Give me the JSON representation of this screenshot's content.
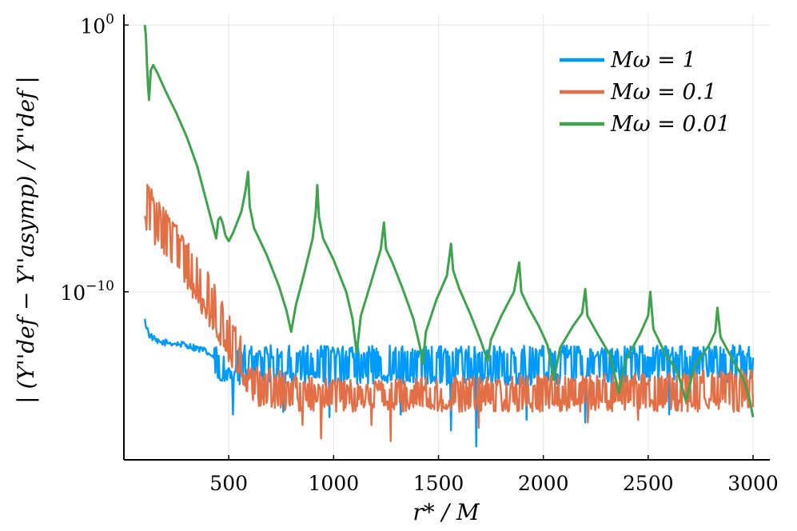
{
  "chart_data": {
    "type": "line",
    "title": "",
    "xlabel": "r* / M",
    "ylabel": "| (Y''def − Y''asymp) / Y''def |",
    "yscale": "log",
    "xlim": [
      0,
      3080
    ],
    "ylim_log10": [
      -16.3,
      0.4
    ],
    "xticks": [
      500,
      1000,
      1500,
      2000,
      2500,
      3000
    ],
    "xtick_labels": [
      "500",
      "1000",
      "1500",
      "2000",
      "2500",
      "3000"
    ],
    "yticks_log10": [
      0,
      -10
    ],
    "ytick_labels": [
      "10",
      "10"
    ],
    "ytick_exponents": [
      "0",
      "−10"
    ],
    "grid": true,
    "legend_position": "top-right",
    "series": [
      {
        "name": "Mω = 1",
        "legend_prefix": "Mω = ",
        "legend_value": "1",
        "color": "#009AFA",
        "points": [
          [
            100,
            -11.1
          ],
          [
            120,
            -11.6
          ],
          [
            160,
            -11.9
          ],
          [
            200,
            -11.9
          ],
          [
            300,
            -12.0
          ],
          [
            380,
            -12.2
          ],
          [
            420,
            -12.4
          ],
          [
            450,
            -12.7
          ],
          [
            480,
            -13.2
          ],
          [
            500,
            -13.6
          ],
          [
            520,
            -13.8
          ],
          [
            560,
            -12.3
          ],
          [
            600,
            -12.4
          ],
          [
            800,
            -12.6
          ],
          [
            1000,
            -12.7
          ],
          [
            1200,
            -12.6
          ],
          [
            1500,
            -12.6
          ],
          [
            2000,
            -12.5
          ],
          [
            2500,
            -12.4
          ],
          [
            3000,
            -12.4
          ]
        ],
        "band_min": -13.5,
        "band_max": -12.0,
        "dips": [
          [
            520,
            -14.6
          ],
          [
            760,
            -14.5
          ],
          [
            980,
            -14.7
          ],
          [
            1320,
            -14.6
          ],
          [
            1560,
            -15.2
          ],
          [
            1680,
            -15.8
          ],
          [
            1920,
            -14.8
          ],
          [
            2200,
            -14.9
          ],
          [
            2600,
            -14.6
          ]
        ]
      },
      {
        "name": "Mω = 0.1",
        "legend_prefix": "Mω = ",
        "legend_value": "0.1",
        "color": "#E26F46",
        "points": [
          [
            100,
            -6.5
          ],
          [
            150,
            -7.2
          ],
          [
            200,
            -7.8
          ],
          [
            250,
            -8.3
          ],
          [
            300,
            -8.8
          ],
          [
            350,
            -9.4
          ],
          [
            400,
            -10.1
          ],
          [
            450,
            -10.8
          ],
          [
            500,
            -11.6
          ],
          [
            550,
            -12.4
          ],
          [
            600,
            -13.0
          ],
          [
            700,
            -13.7
          ],
          [
            800,
            -14.0
          ],
          [
            1000,
            -14.1
          ],
          [
            1500,
            -14.1
          ],
          [
            2000,
            -14.0
          ],
          [
            2500,
            -13.9
          ],
          [
            3000,
            -13.8
          ]
        ],
        "band_min": -14.5,
        "band_max": -12.8,
        "dips": [
          [
            850,
            -15.0
          ],
          [
            940,
            -15.5
          ],
          [
            1180,
            -15.0
          ],
          [
            1270,
            -15.6
          ],
          [
            1690,
            -15.1
          ],
          [
            2210,
            -14.9
          ],
          [
            2450,
            -14.8
          ]
        ]
      },
      {
        "name": "Mω = 0.01",
        "legend_prefix": "Mω = ",
        "legend_value": "0.01",
        "color": "#3FA34D",
        "points": [
          [
            100,
            0.0
          ],
          [
            105,
            -0.4
          ],
          [
            110,
            -1.5
          ],
          [
            115,
            -2.3
          ],
          [
            120,
            -2.8
          ],
          [
            128,
            -1.7
          ],
          [
            140,
            -1.5
          ],
          [
            160,
            -1.8
          ],
          [
            200,
            -2.5
          ],
          [
            250,
            -3.3
          ],
          [
            300,
            -4.2
          ],
          [
            350,
            -5.3
          ],
          [
            400,
            -6.8
          ],
          [
            440,
            -8.0
          ],
          [
            450,
            -7.3
          ],
          [
            460,
            -7.2
          ],
          [
            470,
            -7.4
          ],
          [
            485,
            -7.9
          ],
          [
            500,
            -8.1
          ],
          [
            520,
            -7.8
          ],
          [
            560,
            -7.0
          ],
          [
            580,
            -6.2
          ],
          [
            592,
            -5.5
          ],
          [
            600,
            -6.8
          ],
          [
            620,
            -7.6
          ],
          [
            680,
            -8.6
          ],
          [
            740,
            -9.8
          ],
          [
            775,
            -10.7
          ],
          [
            798,
            -11.5
          ],
          [
            820,
            -10.5
          ],
          [
            860,
            -9.3
          ],
          [
            900,
            -8.0
          ],
          [
            915,
            -7.0
          ],
          [
            922,
            -6.0
          ],
          [
            930,
            -7.2
          ],
          [
            950,
            -8.0
          ],
          [
            1000,
            -8.8
          ],
          [
            1060,
            -10.0
          ],
          [
            1090,
            -11.0
          ],
          [
            1110,
            -12.3
          ],
          [
            1130,
            -10.9
          ],
          [
            1180,
            -9.6
          ],
          [
            1225,
            -8.4
          ],
          [
            1240,
            -7.4
          ],
          [
            1250,
            -8.4
          ],
          [
            1280,
            -8.9
          ],
          [
            1330,
            -9.9
          ],
          [
            1380,
            -11.0
          ],
          [
            1410,
            -12.0
          ],
          [
            1425,
            -12.7
          ],
          [
            1440,
            -11.5
          ],
          [
            1490,
            -10.3
          ],
          [
            1540,
            -9.4
          ],
          [
            1560,
            -8.2
          ],
          [
            1570,
            -9.2
          ],
          [
            1600,
            -9.9
          ],
          [
            1650,
            -10.8
          ],
          [
            1700,
            -11.8
          ],
          [
            1735,
            -12.6
          ],
          [
            1750,
            -11.8
          ],
          [
            1800,
            -10.9
          ],
          [
            1860,
            -10.0
          ],
          [
            1885,
            -8.9
          ],
          [
            1895,
            -10.0
          ],
          [
            1930,
            -10.6
          ],
          [
            1980,
            -11.3
          ],
          [
            2020,
            -12.0
          ],
          [
            2050,
            -13.3
          ],
          [
            2080,
            -12.1
          ],
          [
            2140,
            -11.3
          ],
          [
            2185,
            -10.8
          ],
          [
            2200,
            -9.9
          ],
          [
            2210,
            -10.9
          ],
          [
            2260,
            -11.6
          ],
          [
            2320,
            -12.4
          ],
          [
            2360,
            -13.8
          ],
          [
            2390,
            -12.6
          ],
          [
            2460,
            -11.6
          ],
          [
            2500,
            -10.9
          ],
          [
            2510,
            -10.0
          ],
          [
            2525,
            -11.4
          ],
          [
            2580,
            -12.3
          ],
          [
            2640,
            -13.0
          ],
          [
            2680,
            -14.1
          ],
          [
            2720,
            -12.8
          ],
          [
            2790,
            -12.0
          ],
          [
            2820,
            -11.5
          ],
          [
            2830,
            -10.6
          ],
          [
            2845,
            -11.7
          ],
          [
            2900,
            -12.5
          ],
          [
            2950,
            -13.2
          ],
          [
            2980,
            -13.9
          ],
          [
            3000,
            -14.7
          ]
        ]
      }
    ]
  }
}
